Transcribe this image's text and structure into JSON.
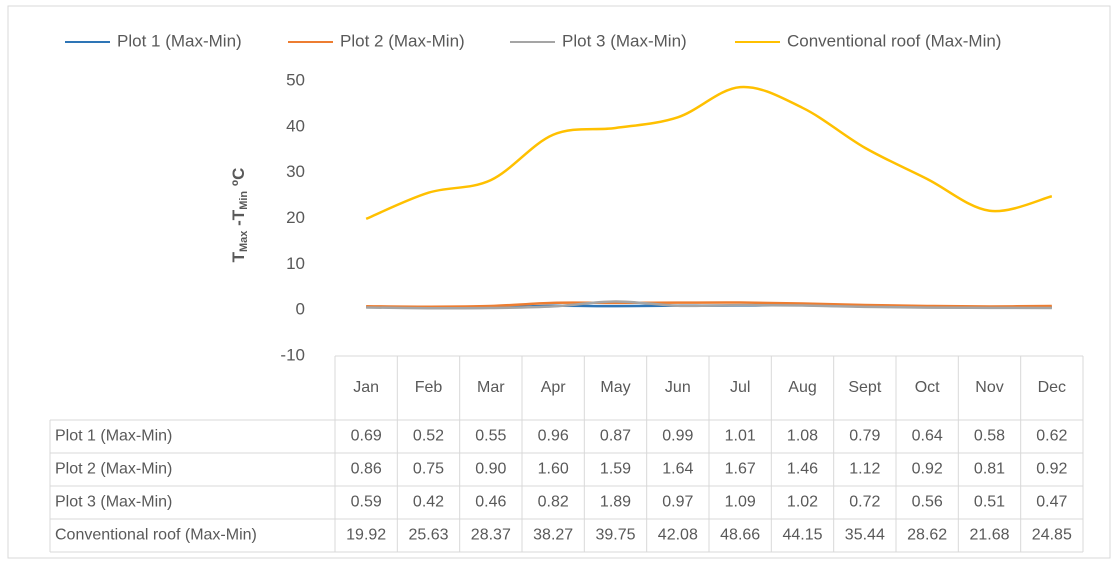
{
  "chart_data": {
    "type": "line",
    "ylabel": [
      "T",
      "Max",
      " -T",
      "Min",
      " ºC"
    ],
    "categories": [
      "Jan",
      "Feb",
      "Mar",
      "Apr",
      "May",
      "Jun",
      "Jul",
      "Aug",
      "Sept",
      "Oct",
      "Nov",
      "Dec"
    ],
    "ylim": [
      -10,
      50
    ],
    "yticks": [
      -10,
      0,
      10,
      20,
      30,
      40,
      50
    ],
    "series": [
      {
        "name": "Plot 1 (Max-Min)",
        "color": "#2e75b6",
        "values": [
          0.69,
          0.52,
          0.55,
          0.96,
          0.87,
          0.99,
          1.01,
          1.08,
          0.79,
          0.64,
          0.58,
          0.62
        ],
        "value_labels": [
          "0.69",
          "0.52",
          "0.55",
          "0.96",
          "0.87",
          "0.99",
          "1.01",
          "1.08",
          "0.79",
          "0.64",
          "0.58",
          "0.62"
        ]
      },
      {
        "name": "Plot 2 (Max-Min)",
        "color": "#ed7d31",
        "values": [
          0.86,
          0.75,
          0.9,
          1.6,
          1.59,
          1.64,
          1.67,
          1.46,
          1.12,
          0.92,
          0.81,
          0.92
        ],
        "value_labels": [
          "0.86",
          "0.75",
          "0.90",
          "1.60",
          "1.59",
          "1.64",
          "1.67",
          "1.46",
          "1.12",
          "0.92",
          "0.81",
          "0.92"
        ]
      },
      {
        "name": "Plot 3 (Max-Min)",
        "color": "#a5a5a5",
        "values": [
          0.59,
          0.42,
          0.46,
          0.82,
          1.89,
          0.97,
          1.09,
          1.02,
          0.72,
          0.56,
          0.51,
          0.47
        ],
        "value_labels": [
          "0.59",
          "0.42",
          "0.46",
          "0.82",
          "1.89",
          "0.97",
          "1.09",
          "1.02",
          "0.72",
          "0.56",
          "0.51",
          "0.47"
        ]
      },
      {
        "name": "Conventional roof (Max-Min)",
        "color": "#ffc000",
        "values": [
          19.92,
          25.63,
          28.37,
          38.27,
          39.75,
          42.08,
          48.66,
          44.15,
          35.44,
          28.62,
          21.68,
          24.85
        ],
        "value_labels": [
          "19.92",
          "25.63",
          "28.37",
          "38.27",
          "39.75",
          "42.08",
          "48.66",
          "44.15",
          "35.44",
          "28.62",
          "21.68",
          "24.85"
        ]
      }
    ]
  }
}
